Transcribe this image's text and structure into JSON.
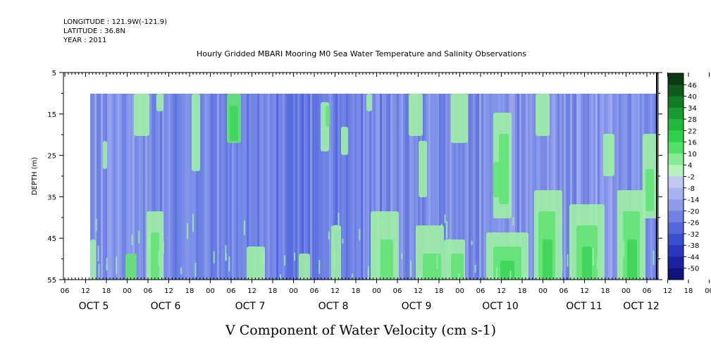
{
  "header": {
    "longitude": "LONGITUDE : 121.9W(-121.9)",
    "latitude": "LATITUDE : 36.8N",
    "year": "YEAR : 2011"
  },
  "chart_data": {
    "type": "heatmap",
    "title": "Hourly Gridded MBARI Mooring M0 Sea Water Temperature and Salinity Observations",
    "xlabel": "V Component of Water Velocity (cm s-1)",
    "ylabel": "DEPTH (m)",
    "y_ticks": [
      "5",
      "15",
      "25",
      "35",
      "45",
      "55"
    ],
    "ylim": [
      5,
      55
    ],
    "y_reversed": true,
    "data_depth_range": [
      10,
      55
    ],
    "hour_ticks": [
      "06",
      "12",
      "18",
      "00",
      "06",
      "12",
      "18",
      "00",
      "06",
      "12",
      "18",
      "00",
      "06",
      "12",
      "18",
      "00",
      "06",
      "12",
      "18",
      "00",
      "06",
      "12",
      "18",
      "00",
      "06",
      "12",
      "18",
      "00",
      "06",
      "12",
      "18",
      "00",
      "06"
    ],
    "day_labels": [
      "OCT  5",
      "OCT  6",
      "OCT  7",
      "OCT  8",
      "OCT  9",
      "OCT 10",
      "OCT 11",
      "OCT 12"
    ],
    "colorbar_levels": [
      "46",
      "40",
      "34",
      "28",
      "22",
      "16",
      "10",
      "4",
      "-2",
      "-8",
      "-14",
      "-20",
      "-26",
      "-32",
      "-38",
      "-44",
      "-50"
    ],
    "colorbar_colors": [
      "#0a3a12",
      "#0e5a1c",
      "#137a26",
      "#1a9a30",
      "#22b83c",
      "#2ed24a",
      "#52e066",
      "#86eb92",
      "#b6f2bc",
      "#c2c8f4",
      "#a8b2ee",
      "#8e9aea",
      "#7282e4",
      "#5468dc",
      "#3a4ed0",
      "#2a36bc",
      "#1c229e",
      "#10147a"
    ]
  }
}
